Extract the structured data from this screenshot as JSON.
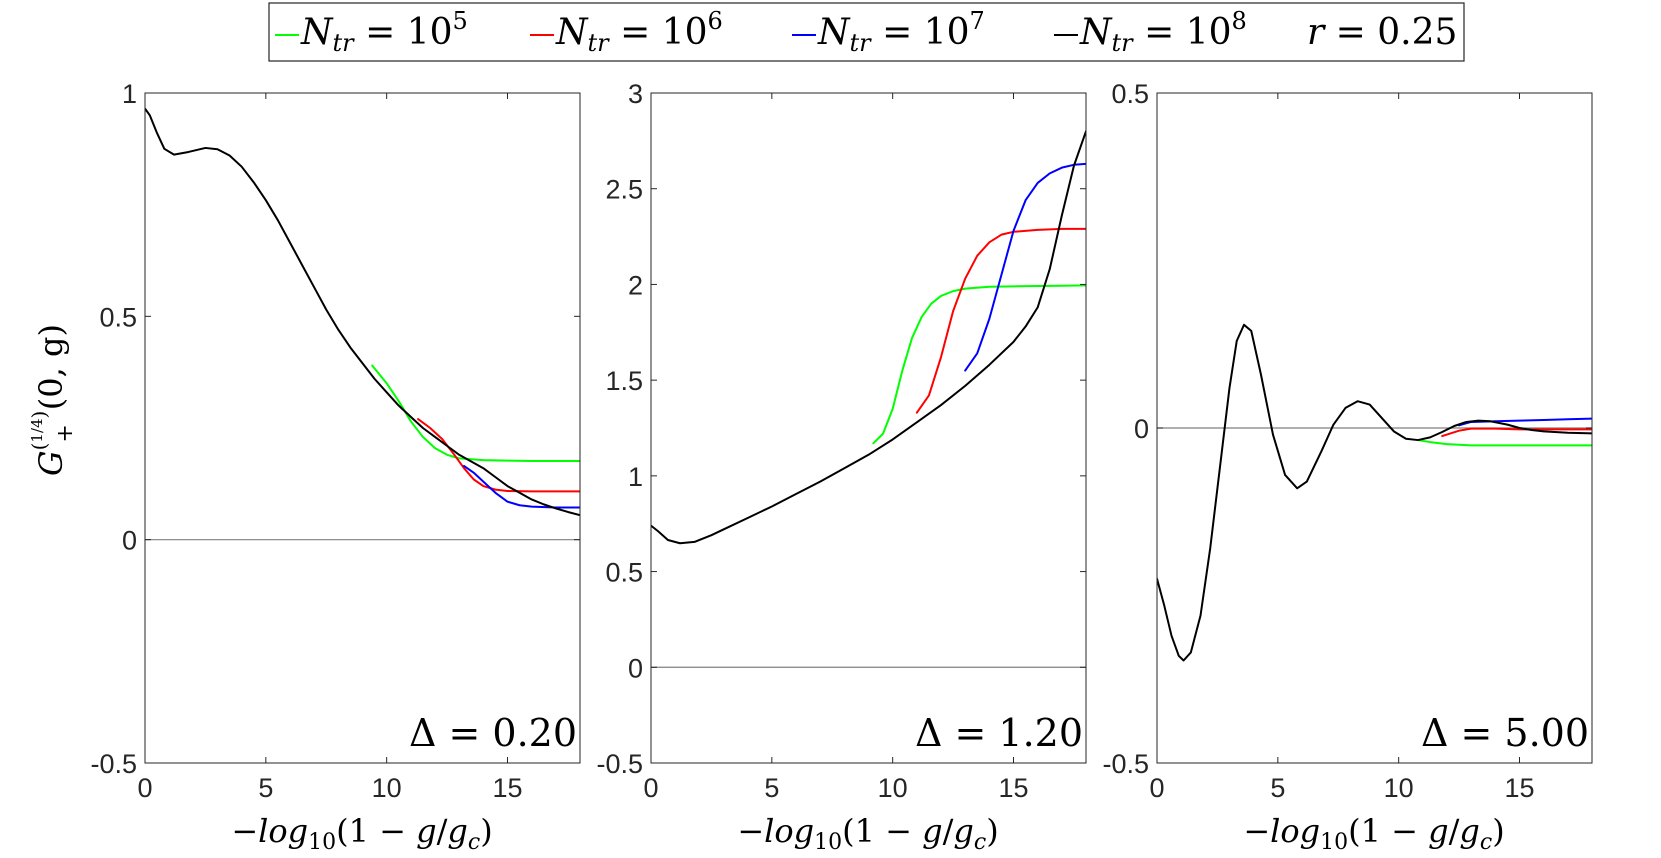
{
  "legend": {
    "entries": [
      {
        "label": "N_tr = 10^5",
        "base": "N",
        "sub": "tr",
        "rhs": "10",
        "exp": "5",
        "color": "#00ff00"
      },
      {
        "label": "N_tr = 10^6",
        "base": "N",
        "sub": "tr",
        "rhs": "10",
        "exp": "6",
        "color": "#ff0000"
      },
      {
        "label": "N_tr = 10^7",
        "base": "N",
        "sub": "tr",
        "rhs": "10",
        "exp": "7",
        "color": "#0000ff"
      },
      {
        "label": "N_tr = 10^8",
        "base": "N",
        "sub": "tr",
        "rhs": "10",
        "exp": "8",
        "color": "#000000"
      }
    ],
    "extra": {
      "var": "r",
      "value": "0.25"
    }
  },
  "ylabel": {
    "base": "G",
    "sub": "+",
    "sup_num": "1",
    "sup_den": "4",
    "args": "(0, g)"
  },
  "xlabel": {
    "minus": "−",
    "fn": "log",
    "fn_sub": "10",
    "arg_open": "(1 − ",
    "arg_g": "g",
    "slash": "/",
    "arg_gc": "g",
    "gc_sub": "c",
    "arg_close": ")"
  },
  "chart_data": [
    {
      "type": "line",
      "panel_label": "Δ = 0.20",
      "delta": "0.20",
      "xlim": [
        0,
        18
      ],
      "ylim": [
        -0.5,
        1
      ],
      "xticks": [
        0,
        5,
        10,
        15
      ],
      "xtick_labels": [
        "0",
        "5",
        "10",
        "15"
      ],
      "yticks": [
        -0.5,
        0,
        0.5,
        1
      ],
      "ytick_labels": [
        "-0.5",
        "0",
        "0.5",
        "1"
      ],
      "zero_line": true,
      "series": [
        {
          "name": "N_tr = 10^5",
          "color": "#00ff00",
          "points": [
            [
              9.4,
              0.39
            ],
            [
              10,
              0.35
            ],
            [
              10.5,
              0.31
            ],
            [
              11,
              0.265
            ],
            [
              11.5,
              0.23
            ],
            [
              12,
              0.205
            ],
            [
              12.5,
              0.19
            ],
            [
              13,
              0.182
            ],
            [
              14,
              0.178
            ],
            [
              15,
              0.177
            ],
            [
              16,
              0.176
            ],
            [
              17,
              0.176
            ],
            [
              18,
              0.176
            ]
          ]
        },
        {
          "name": "N_tr = 10^6",
          "color": "#ff0000",
          "points": [
            [
              11.3,
              0.27
            ],
            [
              11.8,
              0.25
            ],
            [
              12.3,
              0.225
            ],
            [
              12.8,
              0.19
            ],
            [
              13.2,
              0.16
            ],
            [
              13.6,
              0.135
            ],
            [
              14,
              0.12
            ],
            [
              14.5,
              0.112
            ],
            [
              15,
              0.109
            ],
            [
              16,
              0.108
            ],
            [
              17,
              0.108
            ],
            [
              18,
              0.108
            ]
          ]
        },
        {
          "name": "N_tr = 10^7",
          "color": "#0000ff",
          "points": [
            [
              13.2,
              0.165
            ],
            [
              13.6,
              0.15
            ],
            [
              14,
              0.13
            ],
            [
              14.5,
              0.105
            ],
            [
              15,
              0.085
            ],
            [
              15.5,
              0.077
            ],
            [
              16,
              0.074
            ],
            [
              17,
              0.072
            ],
            [
              18,
              0.072
            ]
          ]
        },
        {
          "name": "N_tr = 10^8",
          "color": "#000000",
          "points": [
            [
              0,
              0.965
            ],
            [
              0.2,
              0.95
            ],
            [
              0.5,
              0.91
            ],
            [
              0.8,
              0.875
            ],
            [
              1.2,
              0.862
            ],
            [
              1.8,
              0.868
            ],
            [
              2.5,
              0.877
            ],
            [
              3,
              0.874
            ],
            [
              3.5,
              0.86
            ],
            [
              4,
              0.835
            ],
            [
              4.5,
              0.8
            ],
            [
              5,
              0.76
            ],
            [
              5.5,
              0.715
            ],
            [
              6,
              0.665
            ],
            [
              6.5,
              0.615
            ],
            [
              7,
              0.565
            ],
            [
              7.5,
              0.515
            ],
            [
              8,
              0.47
            ],
            [
              8.5,
              0.43
            ],
            [
              9,
              0.395
            ],
            [
              9.5,
              0.36
            ],
            [
              10,
              0.33
            ],
            [
              10.5,
              0.3
            ],
            [
              11,
              0.275
            ],
            [
              11.5,
              0.25
            ],
            [
              12,
              0.23
            ],
            [
              12.5,
              0.21
            ],
            [
              13,
              0.19
            ],
            [
              13.5,
              0.175
            ],
            [
              14,
              0.16
            ],
            [
              14.5,
              0.14
            ],
            [
              15,
              0.12
            ],
            [
              15.5,
              0.105
            ],
            [
              16,
              0.09
            ],
            [
              16.5,
              0.079
            ],
            [
              17,
              0.07
            ],
            [
              17.5,
              0.062
            ],
            [
              18,
              0.055
            ]
          ]
        }
      ]
    },
    {
      "type": "line",
      "panel_label": "Δ = 1.20",
      "delta": "1.20",
      "xlim": [
        0,
        18
      ],
      "ylim": [
        -0.5,
        3
      ],
      "xticks": [
        0,
        5,
        10,
        15
      ],
      "xtick_labels": [
        "0",
        "5",
        "10",
        "15"
      ],
      "yticks": [
        -0.5,
        0,
        0.5,
        1,
        1.5,
        2,
        2.5,
        3
      ],
      "ytick_labels": [
        "-0.5",
        "0",
        "0.5",
        "1",
        "1.5",
        "2",
        "2.5",
        "3"
      ],
      "zero_line": true,
      "series": [
        {
          "name": "N_tr = 10^5",
          "color": "#00ff00",
          "points": [
            [
              9.2,
              1.17
            ],
            [
              9.6,
              1.22
            ],
            [
              10,
              1.35
            ],
            [
              10.4,
              1.55
            ],
            [
              10.8,
              1.72
            ],
            [
              11.2,
              1.83
            ],
            [
              11.6,
              1.9
            ],
            [
              12,
              1.94
            ],
            [
              12.5,
              1.965
            ],
            [
              13,
              1.978
            ],
            [
              14,
              1.988
            ],
            [
              15,
              1.99
            ],
            [
              16,
              1.992
            ],
            [
              17,
              1.993
            ],
            [
              18,
              1.995
            ]
          ]
        },
        {
          "name": "N_tr = 10^6",
          "color": "#ff0000",
          "points": [
            [
              11,
              1.33
            ],
            [
              11.5,
              1.42
            ],
            [
              12,
              1.62
            ],
            [
              12.5,
              1.86
            ],
            [
              13,
              2.03
            ],
            [
              13.5,
              2.15
            ],
            [
              14,
              2.22
            ],
            [
              14.5,
              2.26
            ],
            [
              15,
              2.275
            ],
            [
              16,
              2.285
            ],
            [
              17,
              2.29
            ],
            [
              18,
              2.29
            ]
          ]
        },
        {
          "name": "N_tr = 10^7",
          "color": "#0000ff",
          "points": [
            [
              13,
              1.55
            ],
            [
              13.5,
              1.64
            ],
            [
              14,
              1.82
            ],
            [
              14.5,
              2.05
            ],
            [
              15,
              2.28
            ],
            [
              15.5,
              2.44
            ],
            [
              16,
              2.53
            ],
            [
              16.5,
              2.58
            ],
            [
              17,
              2.61
            ],
            [
              17.5,
              2.625
            ],
            [
              18,
              2.63
            ]
          ]
        },
        {
          "name": "N_tr = 10^8",
          "color": "#000000",
          "points": [
            [
              0,
              0.74
            ],
            [
              0.3,
              0.71
            ],
            [
              0.7,
              0.665
            ],
            [
              1.2,
              0.648
            ],
            [
              1.8,
              0.655
            ],
            [
              2.5,
              0.69
            ],
            [
              3,
              0.72
            ],
            [
              4,
              0.78
            ],
            [
              5,
              0.84
            ],
            [
              6,
              0.905
            ],
            [
              7,
              0.97
            ],
            [
              8,
              1.04
            ],
            [
              9,
              1.11
            ],
            [
              10,
              1.19
            ],
            [
              11,
              1.28
            ],
            [
              12,
              1.37
            ],
            [
              13,
              1.47
            ],
            [
              14,
              1.58
            ],
            [
              15,
              1.7
            ],
            [
              15.5,
              1.78
            ],
            [
              16,
              1.88
            ],
            [
              16.5,
              2.08
            ],
            [
              17,
              2.36
            ],
            [
              17.5,
              2.62
            ],
            [
              18,
              2.8
            ]
          ]
        }
      ]
    },
    {
      "type": "line",
      "panel_label": "Δ = 5.00",
      "delta": "5.00",
      "xlim": [
        0,
        18
      ],
      "ylim": [
        -0.5,
        0.5
      ],
      "xticks": [
        0,
        5,
        10,
        15
      ],
      "xtick_labels": [
        "0",
        "5",
        "10",
        "15"
      ],
      "yticks": [
        -0.5,
        0,
        0.5
      ],
      "ytick_labels": [
        "-0.5",
        "0",
        "0.5"
      ],
      "zero_line": true,
      "series": [
        {
          "name": "N_tr = 10^5",
          "color": "#00ff00",
          "points": [
            [
              10.8,
              -0.018
            ],
            [
              11.3,
              -0.021
            ],
            [
              12,
              -0.024
            ],
            [
              13,
              -0.026
            ],
            [
              14,
              -0.026
            ],
            [
              15,
              -0.026
            ],
            [
              16,
              -0.026
            ],
            [
              17,
              -0.026
            ],
            [
              18,
              -0.026
            ]
          ]
        },
        {
          "name": "N_tr = 10^6",
          "color": "#ff0000",
          "points": [
            [
              11.8,
              -0.012
            ],
            [
              12.5,
              -0.004
            ],
            [
              13,
              -0.001
            ],
            [
              14,
              -0.001
            ],
            [
              15,
              -0.002
            ],
            [
              16,
              -0.002
            ],
            [
              17,
              -0.002
            ],
            [
              18,
              -0.002
            ]
          ]
        },
        {
          "name": "N_tr = 10^7",
          "color": "#0000ff",
          "points": [
            [
              12.5,
              0.004
            ],
            [
              13,
              0.009
            ],
            [
              14,
              0.01
            ],
            [
              15,
              0.011
            ],
            [
              16,
              0.012
            ],
            [
              17,
              0.013
            ],
            [
              18,
              0.014
            ]
          ]
        },
        {
          "name": "N_tr = 10^8",
          "color": "#000000",
          "points": [
            [
              0,
              -0.225
            ],
            [
              0.3,
              -0.265
            ],
            [
              0.6,
              -0.31
            ],
            [
              0.9,
              -0.34
            ],
            [
              1.1,
              -0.347
            ],
            [
              1.4,
              -0.335
            ],
            [
              1.8,
              -0.28
            ],
            [
              2.2,
              -0.18
            ],
            [
              2.6,
              -0.06
            ],
            [
              3,
              0.06
            ],
            [
              3.3,
              0.13
            ],
            [
              3.6,
              0.154
            ],
            [
              3.9,
              0.145
            ],
            [
              4.3,
              0.08
            ],
            [
              4.8,
              -0.01
            ],
            [
              5.3,
              -0.07
            ],
            [
              5.8,
              -0.09
            ],
            [
              6.2,
              -0.08
            ],
            [
              6.8,
              -0.035
            ],
            [
              7.3,
              0.005
            ],
            [
              7.8,
              0.03
            ],
            [
              8.3,
              0.04
            ],
            [
              8.8,
              0.035
            ],
            [
              9.3,
              0.015
            ],
            [
              9.8,
              -0.005
            ],
            [
              10.3,
              -0.016
            ],
            [
              10.8,
              -0.018
            ],
            [
              11.3,
              -0.014
            ],
            [
              11.8,
              -0.006
            ],
            [
              12.3,
              0.003
            ],
            [
              12.8,
              0.009
            ],
            [
              13.3,
              0.011
            ],
            [
              13.8,
              0.01
            ],
            [
              14.5,
              0.005
            ],
            [
              15,
              0
            ],
            [
              15.5,
              -0.003
            ],
            [
              16,
              -0.005
            ],
            [
              17,
              -0.007
            ],
            [
              18,
              -0.008
            ]
          ]
        }
      ]
    }
  ]
}
